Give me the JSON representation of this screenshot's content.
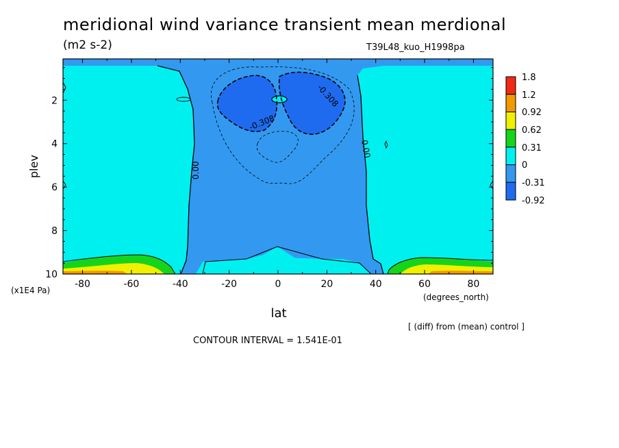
{
  "title": "meridional wind variance transient mean merdional",
  "units": "(m2 s-2)",
  "experiment": "T39L48_kuo_H1998pa",
  "note": "[ (diff) from (mean) control ]",
  "contour_interval": "CONTOUR INTERVAL = 1.541E-01",
  "colors": {
    "neg092": "#1f6bf0",
    "neg031": "#3399f0",
    "zero": "#00f0f0",
    "pos031": "#16d41c",
    "pos062": "#f0f000",
    "pos092": "#f09a00",
    "pos12": "#ef2a16"
  },
  "chart_data": {
    "type": "contour",
    "title": "meridional wind variance transient mean merdional",
    "xlabel": "lat",
    "x_unit_label": "(degrees_north)",
    "ylabel": "plev",
    "y_unit_label": "(x1E4 Pa)",
    "xlim": [
      -88,
      88
    ],
    "ylim": [
      10,
      0.1
    ],
    "x_ticks": [
      "-80",
      "-60",
      "-40",
      "-20",
      "0",
      "20",
      "40",
      "60",
      "80"
    ],
    "x_tick_values": [
      -80,
      -60,
      -40,
      -20,
      0,
      20,
      40,
      60,
      80
    ],
    "y_ticks": [
      "2",
      "4",
      "6",
      "8",
      "10"
    ],
    "y_tick_values": [
      2,
      4,
      6,
      8,
      10
    ],
    "contour_labels": [
      "0.00",
      "0.00",
      "-0.308",
      "-0.308"
    ],
    "colorbar": {
      "labels": [
        "1.8",
        "1.2",
        "0.92",
        "0.62",
        "0.31",
        "0",
        "-0.31",
        "-0.92"
      ],
      "colors": [
        "#ef2a16",
        "#f09a00",
        "#f0f000",
        "#16d41c",
        "#00f0f0",
        "#3399f0",
        "#1f6bf0"
      ]
    }
  }
}
